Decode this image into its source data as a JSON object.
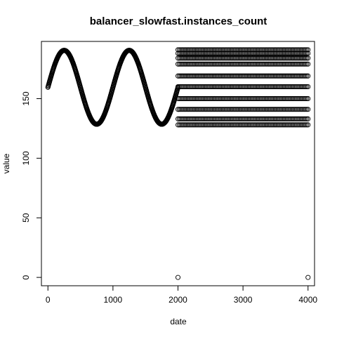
{
  "chart_data": {
    "type": "scatter",
    "title": "balancer_slowfast.instances_count",
    "xlabel": "date",
    "ylabel": "value",
    "xlim": [
      -100,
      4100
    ],
    "ylim": [
      -7,
      198
    ],
    "xticks": [
      0,
      1000,
      2000,
      3000,
      4000
    ],
    "yticks": [
      0,
      50,
      100,
      150
    ],
    "grid": false,
    "legend": "none",
    "point_style": "open-circle",
    "series": [
      {
        "description_range": "x 0-2000",
        "model": "sinusoid",
        "x_start": 0,
        "x_end": 2000,
        "x_step": 4,
        "mean": 159.5,
        "amplitude": 31,
        "period": 1000,
        "peak_at": 250,
        "min": 128,
        "max": 190
      },
      {
        "description_range": "x 2000-4000",
        "model": "discrete-levels",
        "x_start": 2000,
        "x_end": 4000,
        "x_step": 20,
        "levels": [
          128,
          133,
          141,
          150,
          160,
          169,
          179,
          184,
          188,
          191
        ]
      }
    ],
    "outliers": [
      {
        "x": 2000,
        "y": 0
      },
      {
        "x": 4000,
        "y": 0
      }
    ]
  }
}
